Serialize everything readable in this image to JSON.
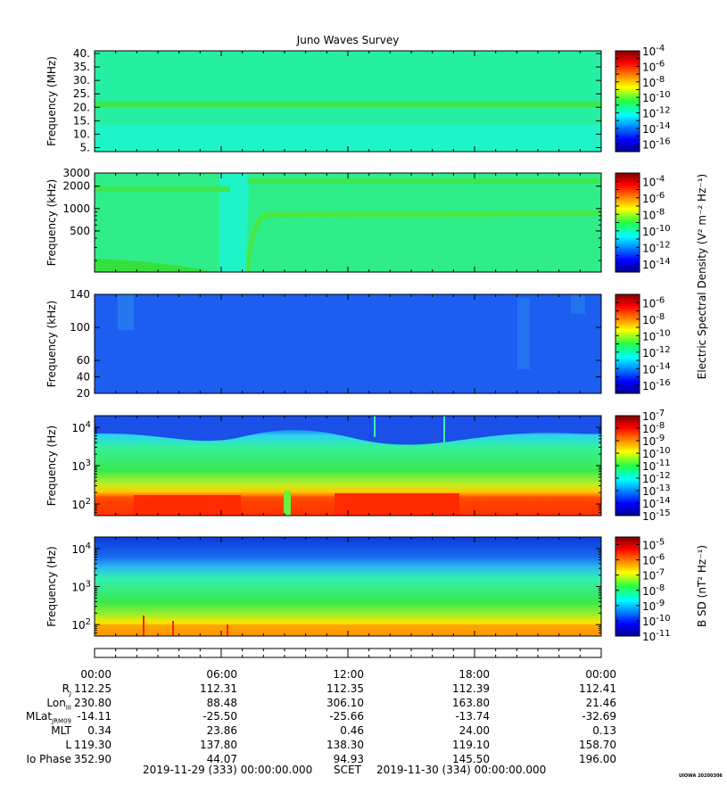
{
  "chart_data": {
    "type": "heatmap",
    "title": "Juno Waves Survey",
    "panels": [
      {
        "id": "hfr-high",
        "ylabel": "Frequency (MHz)",
        "yscale": "linear",
        "ylim": [
          3.5,
          41
        ],
        "yticks": [
          {
            "v": 40,
            "label": "40."
          },
          {
            "v": 35,
            "label": "35."
          },
          {
            "v": 30,
            "label": "30."
          },
          {
            "v": 25,
            "label": "25."
          },
          {
            "v": 20,
            "label": "20."
          },
          {
            "v": 15,
            "label": "15."
          },
          {
            "v": 10,
            "label": "10."
          },
          {
            "v": 5,
            "label": "5."
          }
        ],
        "colorbar": {
          "min_exp": -17,
          "max_exp": -4,
          "ticks": [
            -4,
            -6,
            -8,
            -10,
            -12,
            -14,
            -16
          ]
        }
      },
      {
        "id": "hfr-low",
        "ylabel": "Frequency (kHz)",
        "yscale": "log",
        "ylim": [
          140,
          3000
        ],
        "yticks": [
          {
            "v": 3000,
            "label": "3000"
          },
          {
            "v": 2000,
            "label": "2000"
          },
          {
            "v": 1000,
            "label": "1000"
          },
          {
            "v": 500,
            "label": "500"
          }
        ],
        "colorbar": {
          "min_exp": -15,
          "max_exp": -3,
          "ticks": [
            -4,
            -6,
            -8,
            -10,
            -12,
            -14
          ]
        }
      },
      {
        "id": "lfr-high",
        "ylabel": "Frequency (kHz)",
        "yscale": "linear",
        "ylim": [
          20,
          140
        ],
        "yticks": [
          {
            "v": 140,
            "label": "140"
          },
          {
            "v": 100,
            "label": "100"
          },
          {
            "v": 60,
            "label": "60"
          },
          {
            "v": 40,
            "label": "40"
          },
          {
            "v": 20,
            "label": "20"
          }
        ],
        "colorbar": {
          "min_exp": -17,
          "max_exp": -5,
          "ticks": [
            -6,
            -8,
            -10,
            -12,
            -14,
            -16
          ]
        }
      },
      {
        "id": "lfr-low-e",
        "ylabel": "Frequency (Hz)",
        "yscale": "log",
        "ylim": [
          50,
          20000
        ],
        "yticks": [
          {
            "v": 10000,
            "base": "10",
            "exp": "4"
          },
          {
            "v": 1000,
            "base": "10",
            "exp": "3"
          },
          {
            "v": 100,
            "base": "10",
            "exp": "2"
          }
        ],
        "colorbar": {
          "min_exp": -15,
          "max_exp": -7,
          "ticks": [
            -7,
            -8,
            -9,
            -10,
            -11,
            -12,
            -13,
            -14,
            -15
          ]
        }
      },
      {
        "id": "lfr-low-b",
        "ylabel": "Frequency (Hz)",
        "yscale": "log",
        "ylim": [
          50,
          20000
        ],
        "yticks": [
          {
            "v": 10000,
            "base": "10",
            "exp": "4"
          },
          {
            "v": 1000,
            "base": "10",
            "exp": "3"
          },
          {
            "v": 100,
            "base": "10",
            "exp": "2"
          }
        ],
        "colorbar": {
          "min_exp": -11,
          "max_exp": -4.5,
          "ticks": [
            -5,
            -6,
            -7,
            -8,
            -9,
            -10,
            -11
          ]
        }
      }
    ],
    "electric_colorbar_label": "Electric Spectral Density (V² m⁻² Hz⁻¹)",
    "magnetic_colorbar_label": "B SD (nT² Hz⁻¹)",
    "xlim_hours": [
      0,
      24
    ],
    "x_tick_hours": [
      0,
      6,
      12,
      18,
      24
    ],
    "x_labels": [
      "00:00",
      "06:00",
      "12:00",
      "18:00",
      "00:00"
    ],
    "ephemeris": [
      {
        "name": "R",
        "sub": "J",
        "values": [
          "112.25",
          "112.31",
          "112.35",
          "112.39",
          "112.41"
        ]
      },
      {
        "name": "Lon",
        "sub": "III",
        "values": [
          "230.80",
          "88.48",
          "306.10",
          "163.80",
          "21.46"
        ]
      },
      {
        "name": "MLat",
        "sub": "JRM09",
        "values": [
          "-14.11",
          "-25.50",
          "-25.66",
          "-13.74",
          "-32.69"
        ]
      },
      {
        "name": "MLT",
        "sub": "",
        "values": [
          "0.34",
          "23.86",
          "0.46",
          "24.00",
          "0.13"
        ]
      },
      {
        "name": "L",
        "sub": "",
        "values": [
          "119.30",
          "137.80",
          "138.30",
          "119.10",
          "158.70"
        ]
      },
      {
        "name": "Io Phase",
        "sub": "",
        "values": [
          "352.90",
          "44.07",
          "94.93",
          "145.50",
          "196.00"
        ]
      }
    ],
    "start_time": "2019-11-29 (333) 00:00:00.000",
    "time_label": "SCET",
    "end_time": "2019-11-30 (334) 00:00:00.000",
    "footer_tag": "UIOWA 20200306"
  }
}
